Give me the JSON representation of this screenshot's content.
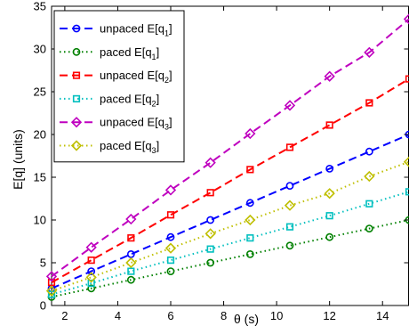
{
  "chart_data": {
    "type": "line",
    "xlabel": "θ (s)",
    "ylabel": "E[q] (units)",
    "xlim": [
      1.5,
      15
    ],
    "ylim": [
      0,
      35
    ],
    "xticks": [
      2,
      4,
      6,
      8,
      10,
      12,
      14
    ],
    "yticks": [
      0,
      5,
      10,
      15,
      20,
      25,
      30,
      35
    ],
    "grid": false,
    "legend_position": "top-left",
    "x": [
      1.5,
      3,
      4.5,
      6,
      7.5,
      9,
      10.5,
      12,
      13.5,
      15
    ],
    "series": [
      {
        "name": "unpaced E[q1]",
        "base": "unpaced E[q",
        "sub": "1",
        "tail": "]",
        "color": "#0000ff",
        "line": "dashed",
        "marker": "circle",
        "values": [
          2.0,
          4.0,
          6.0,
          8.0,
          10.0,
          12.0,
          14.0,
          16.0,
          18.0,
          20.0
        ]
      },
      {
        "name": "paced E[q1]",
        "base": "paced E[q",
        "sub": "1",
        "tail": "]",
        "color": "#008000",
        "line": "dotted",
        "marker": "circle",
        "values": [
          1.0,
          2.0,
          3.0,
          4.0,
          5.0,
          6.0,
          7.0,
          8.0,
          9.0,
          10.0
        ]
      },
      {
        "name": "unpaced E[q2]",
        "base": "unpaced E[q",
        "sub": "2",
        "tail": "]",
        "color": "#ff0000",
        "line": "dashed",
        "marker": "square",
        "values": [
          2.7,
          5.3,
          7.9,
          10.6,
          13.2,
          15.9,
          18.5,
          21.1,
          23.7,
          26.5
        ]
      },
      {
        "name": "paced E[q2]",
        "base": "paced E[q",
        "sub": "2",
        "tail": "]",
        "color": "#00bfbf",
        "line": "dotted",
        "marker": "square",
        "values": [
          1.3,
          2.6,
          4.0,
          5.3,
          6.6,
          7.9,
          9.2,
          10.5,
          11.9,
          13.3
        ]
      },
      {
        "name": "unpaced E[q3]",
        "base": "unpaced E[q",
        "sub": "3",
        "tail": "]",
        "color": "#bf00bf",
        "line": "dashed",
        "marker": "diamond",
        "values": [
          3.4,
          6.8,
          10.1,
          13.5,
          16.7,
          20.1,
          23.4,
          26.8,
          29.6,
          33.5
        ]
      },
      {
        "name": "paced E[q3]",
        "base": "paced E[q",
        "sub": "3",
        "tail": "]",
        "color": "#bfbf00",
        "line": "dotted",
        "marker": "diamond",
        "values": [
          1.7,
          3.3,
          5.0,
          6.7,
          8.4,
          10.0,
          11.7,
          13.1,
          15.1,
          16.8
        ]
      }
    ]
  }
}
